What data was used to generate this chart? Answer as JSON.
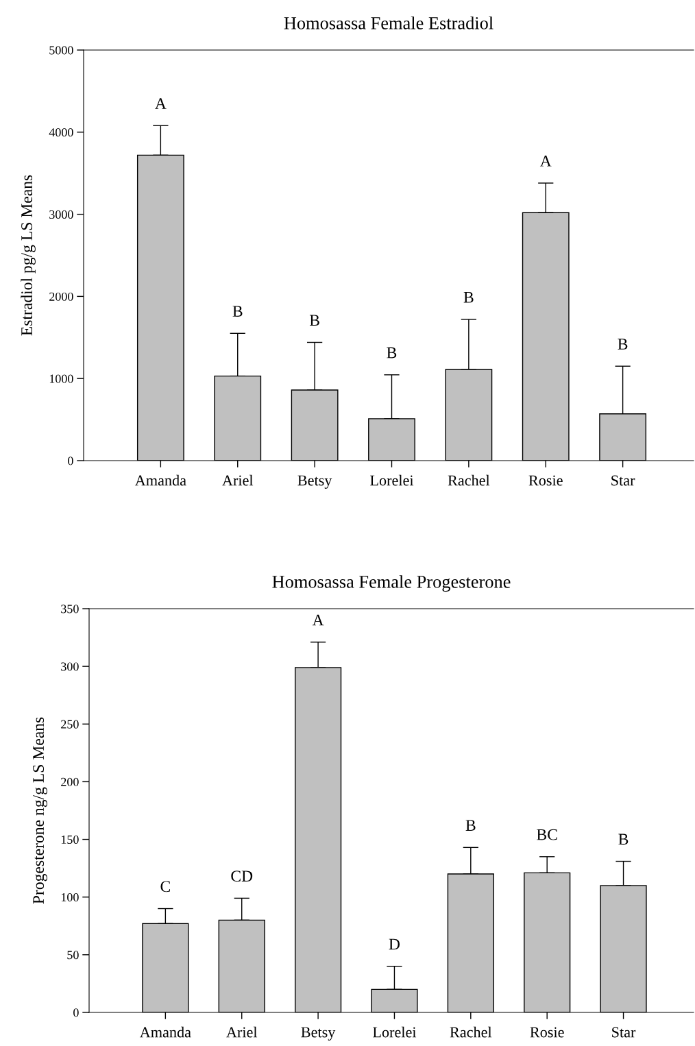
{
  "chart_data": [
    {
      "type": "bar",
      "title": "Homosassa Female Estradiol",
      "ylabel": "Estradiol pg/g LS Means",
      "categories": [
        "Amanda",
        "Ariel",
        "Betsy",
        "Lorelei",
        "Rachel",
        "Rosie",
        "Star"
      ],
      "values": [
        3720,
        1030,
        860,
        510,
        1110,
        3020,
        570
      ],
      "color": "#c0c0c0",
      "errors": [
        [
          3720,
          4080
        ],
        [
          1030,
          1550
        ],
        [
          860,
          1440
        ],
        [
          510,
          1045
        ],
        [
          1110,
          1720
        ],
        [
          3020,
          3380
        ],
        [
          570,
          1150
        ]
      ],
      "ylim": [
        0,
        5000
      ],
      "yticks": [
        0,
        1000,
        2000,
        3000,
        4000,
        5000
      ],
      "grid": false,
      "legend": false,
      "annotations": [
        {
          "text": "A",
          "x": "Amanda",
          "y": 4080
        },
        {
          "text": "B",
          "x": "Ariel",
          "y": 1550
        },
        {
          "text": "B",
          "x": "Betsy",
          "y": 1440
        },
        {
          "text": "B",
          "x": "Lorelei",
          "y": 1045
        },
        {
          "text": "B",
          "x": "Rachel",
          "y": 1720
        },
        {
          "text": "A",
          "x": "Rosie",
          "y": 3380
        },
        {
          "text": "B",
          "x": "Star",
          "y": 1150
        }
      ]
    },
    {
      "type": "bar",
      "title": "Homosassa Female Progesterone",
      "ylabel": "Progesterone ng/g LS Means",
      "categories": [
        "Amanda",
        "Ariel",
        "Betsy",
        "Lorelei",
        "Rachel",
        "Rosie",
        "Star"
      ],
      "values": [
        77,
        80,
        299,
        20,
        120,
        121,
        110
      ],
      "color": "#c0c0c0",
      "errors": [
        [
          77,
          90
        ],
        [
          80,
          99
        ],
        [
          299,
          321
        ],
        [
          20,
          40
        ],
        [
          120,
          143
        ],
        [
          121,
          135
        ],
        [
          110,
          131
        ]
      ],
      "ylim": [
        0,
        350
      ],
      "yticks": [
        0,
        50,
        100,
        150,
        200,
        250,
        300,
        350
      ],
      "grid": false,
      "legend": false,
      "annotations": [
        {
          "text": "C",
          "x": "Amanda",
          "y": 90
        },
        {
          "text": "CD",
          "x": "Ariel",
          "y": 99
        },
        {
          "text": "A",
          "x": "Betsy",
          "y": 321
        },
        {
          "text": "D",
          "x": "Lorelei",
          "y": 40
        },
        {
          "text": "B",
          "x": "Rachel",
          "y": 143
        },
        {
          "text": "BC",
          "x": "Rosie",
          "y": 135
        },
        {
          "text": "B",
          "x": "Star",
          "y": 131
        }
      ]
    }
  ]
}
